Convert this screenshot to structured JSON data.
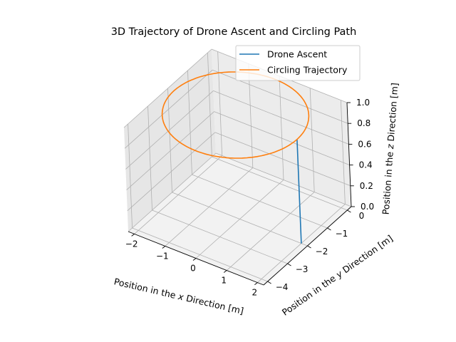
{
  "chart_data": {
    "type": "line",
    "projection": "3d",
    "title": "3D Trajectory of Drone Ascent and Circling Path",
    "xlabel": "Position in the x Direction [m]",
    "ylabel": "Position in the y Direction [m]",
    "zlabel": "Position in the z Direction [m]",
    "xlim": [
      -2.2,
      2.2
    ],
    "ylim": [
      -4.2,
      0.2
    ],
    "zlim": [
      0,
      1
    ],
    "xticks": [
      "-2",
      "-1",
      "0",
      "1",
      "2"
    ],
    "yticks": [
      "-4",
      "-3",
      "-2",
      "-1",
      "0"
    ],
    "zticks": [
      "0.0",
      "0.2",
      "0.4",
      "0.6",
      "0.8",
      "1.0"
    ],
    "grid": true,
    "legend_position": "top-right",
    "series": [
      {
        "name": "Drone Ascent",
        "color": "#1f77b4",
        "points": [
          [
            2,
            -2,
            0
          ],
          [
            2,
            -2,
            1
          ]
        ]
      },
      {
        "name": "Circling Trajectory",
        "color": "#ff7f0e",
        "circle": {
          "center": [
            0,
            -2
          ],
          "radius": 2,
          "z": 1
        }
      }
    ]
  }
}
